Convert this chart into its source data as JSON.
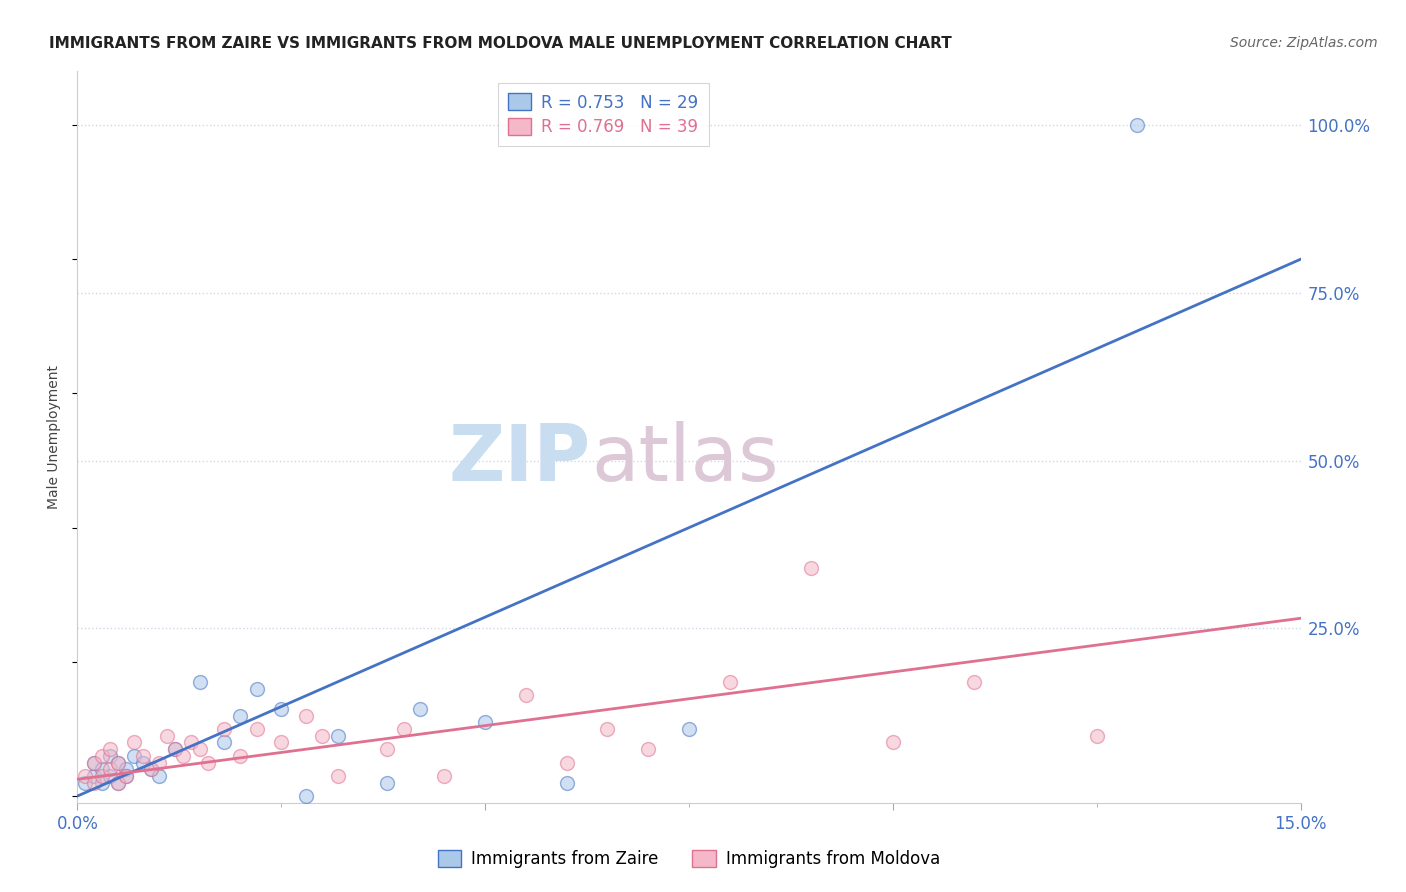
{
  "title": "IMMIGRANTS FROM ZAIRE VS IMMIGRANTS FROM MOLDOVA MALE UNEMPLOYMENT CORRELATION CHART",
  "source": "Source: ZipAtlas.com",
  "ylabel": "Male Unemployment",
  "y_tick_labels": [
    "100.0%",
    "75.0%",
    "50.0%",
    "25.0%"
  ],
  "y_tick_values": [
    1.0,
    0.75,
    0.5,
    0.25
  ],
  "xlim": [
    0.0,
    0.15
  ],
  "ylim": [
    -0.01,
    1.08
  ],
  "background_color": "#ffffff",
  "zaire_color": "#aac8e8",
  "moldova_color": "#f4b8c8",
  "zaire_line_color": "#4472c4",
  "moldova_line_color": "#e07090",
  "zaire_R": 0.753,
  "zaire_N": 29,
  "moldova_R": 0.769,
  "moldova_N": 39,
  "zaire_points_x": [
    0.001,
    0.002,
    0.002,
    0.003,
    0.003,
    0.004,
    0.004,
    0.005,
    0.005,
    0.006,
    0.006,
    0.007,
    0.008,
    0.009,
    0.01,
    0.012,
    0.015,
    0.018,
    0.02,
    0.022,
    0.025,
    0.028,
    0.032,
    0.038,
    0.042,
    0.05,
    0.06,
    0.075,
    0.13
  ],
  "zaire_points_y": [
    0.02,
    0.03,
    0.05,
    0.04,
    0.02,
    0.06,
    0.03,
    0.05,
    0.02,
    0.04,
    0.03,
    0.06,
    0.05,
    0.04,
    0.03,
    0.07,
    0.17,
    0.08,
    0.12,
    0.16,
    0.13,
    0.0,
    0.09,
    0.02,
    0.13,
    0.11,
    0.02,
    0.1,
    1.0
  ],
  "moldova_points_x": [
    0.001,
    0.002,
    0.002,
    0.003,
    0.003,
    0.004,
    0.004,
    0.005,
    0.005,
    0.006,
    0.007,
    0.008,
    0.009,
    0.01,
    0.011,
    0.012,
    0.013,
    0.014,
    0.015,
    0.016,
    0.018,
    0.02,
    0.022,
    0.025,
    0.028,
    0.03,
    0.032,
    0.038,
    0.04,
    0.045,
    0.055,
    0.06,
    0.065,
    0.07,
    0.08,
    0.09,
    0.1,
    0.11,
    0.125
  ],
  "moldova_points_y": [
    0.03,
    0.02,
    0.05,
    0.03,
    0.06,
    0.04,
    0.07,
    0.02,
    0.05,
    0.03,
    0.08,
    0.06,
    0.04,
    0.05,
    0.09,
    0.07,
    0.06,
    0.08,
    0.07,
    0.05,
    0.1,
    0.06,
    0.1,
    0.08,
    0.12,
    0.09,
    0.03,
    0.07,
    0.1,
    0.03,
    0.15,
    0.05,
    0.1,
    0.07,
    0.17,
    0.34,
    0.08,
    0.17,
    0.09
  ],
  "zaire_line_x": [
    0.0,
    0.15
  ],
  "zaire_line_y": [
    0.0,
    0.8
  ],
  "moldova_line_x": [
    0.0,
    0.15
  ],
  "moldova_line_y": [
    0.025,
    0.265
  ],
  "grid_color": "#d0d8e8",
  "marker_size": 100,
  "marker_alpha": 0.55,
  "marker_linewidth": 1.0,
  "legend_fontsize": 12,
  "title_fontsize": 11,
  "ylabel_fontsize": 10,
  "source_fontsize": 10,
  "ytick_color": "#4472c4",
  "xtick_color": "#4472c4"
}
